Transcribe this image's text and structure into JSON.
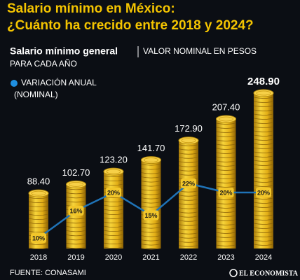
{
  "chart_data": {
    "type": "bar",
    "title": [
      "Salario mínimo en México:",
      "¿Cuánto ha crecido entre 2018 y 2024?"
    ],
    "chart_title": "Salario mínimo general",
    "chart_subtitle": [
      "VALOR NOMINAL EN PESOS",
      "PARA CADA AÑO"
    ],
    "categories": [
      "2018",
      "2019",
      "2020",
      "2021",
      "2022",
      "2023",
      "2024"
    ],
    "series": [
      {
        "type": "bar",
        "color": "#e9b81f",
        "values": [
          88.4,
          102.7,
          123.2,
          141.7,
          172.9,
          207.4,
          248.9
        ],
        "value_labels": [
          "88.40",
          "102.70",
          "123.20",
          "141.70",
          "172.90",
          "207.40",
          "248.90"
        ]
      },
      {
        "type": "line",
        "name": [
          "VARIACIÓN ANUAL",
          "(NOMINAL)"
        ],
        "color": "#1f73b7",
        "values": [
          10,
          16,
          20,
          15,
          22,
          20,
          20
        ],
        "value_labels": [
          "10%",
          "16%",
          "20%",
          "15%",
          "22%",
          "20%",
          "20%"
        ]
      }
    ],
    "source": "FUENTE: CONASAMI",
    "logo": "EL ECONOMISTA"
  }
}
